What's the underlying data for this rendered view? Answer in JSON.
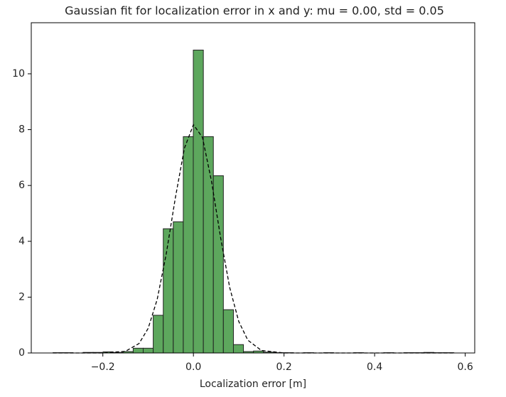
{
  "chart_data": {
    "type": "histogram",
    "title": "Gaussian fit for localization error in x and y: mu = 0.00,  std = 0.05",
    "x_label": "Localization error [m]",
    "bins": [
      -0.31,
      -0.2879,
      -0.2658,
      -0.2436,
      -0.2215,
      -0.1994,
      -0.1773,
      -0.1551,
      -0.133,
      -0.1109,
      -0.0888,
      -0.0666,
      -0.0445,
      -0.0224,
      -0.0003,
      0.0219,
      0.044,
      0.0661,
      0.0883,
      0.1104,
      0.1325,
      0.1546,
      0.1768,
      0.1989,
      0.221,
      0.2431,
      0.2653,
      0.2874,
      0.3095,
      0.3316,
      0.3538,
      0.3759,
      0.398,
      0.4201,
      0.4423,
      0.4644,
      0.4865,
      0.5086,
      0.5308,
      0.5529,
      0.575
    ],
    "values": [
      0.01,
      0.01,
      0,
      0.02,
      0.02,
      0.04,
      0.02,
      0.05,
      0.17,
      0.17,
      1.35,
      4.45,
      4.7,
      7.75,
      10.85,
      7.75,
      6.35,
      1.55,
      0.3,
      0.05,
      0.07,
      0.03,
      0.01,
      0.01,
      0,
      0.01,
      0,
      0.01,
      0,
      0,
      0.01,
      0,
      0,
      0.01,
      0,
      0.01,
      0.01,
      0.02,
      0.01,
      0.01
    ],
    "color": "#5da75d",
    "edgecolor": "#222222",
    "fit": {
      "x": [
        -0.31,
        -0.2,
        -0.15,
        -0.12,
        -0.1,
        -0.08,
        -0.06,
        -0.04,
        -0.02,
        0,
        0.02,
        0.04,
        0.06,
        0.08,
        0.1,
        0.12,
        0.15,
        0.2,
        0.575
      ],
      "values": [
        0,
        0,
        0.06,
        0.34,
        0.88,
        1.92,
        3.55,
        5.55,
        7.33,
        8.18,
        7.72,
        6.14,
        4.13,
        2.35,
        1.13,
        0.46,
        0.09,
        0,
        0
      ],
      "color": "#000000",
      "dashed": true
    },
    "xlim": [
      -0.358,
      0.621
    ],
    "ylim": [
      0,
      11.83
    ],
    "xticks": [
      {
        "value": -0.2,
        "label": "−0.2"
      },
      {
        "value": 0,
        "label": "0.0"
      },
      0.2,
      0.4,
      0.6
    ],
    "yticks": [
      0,
      2,
      4,
      6,
      8,
      10
    ],
    "grid": false
  }
}
